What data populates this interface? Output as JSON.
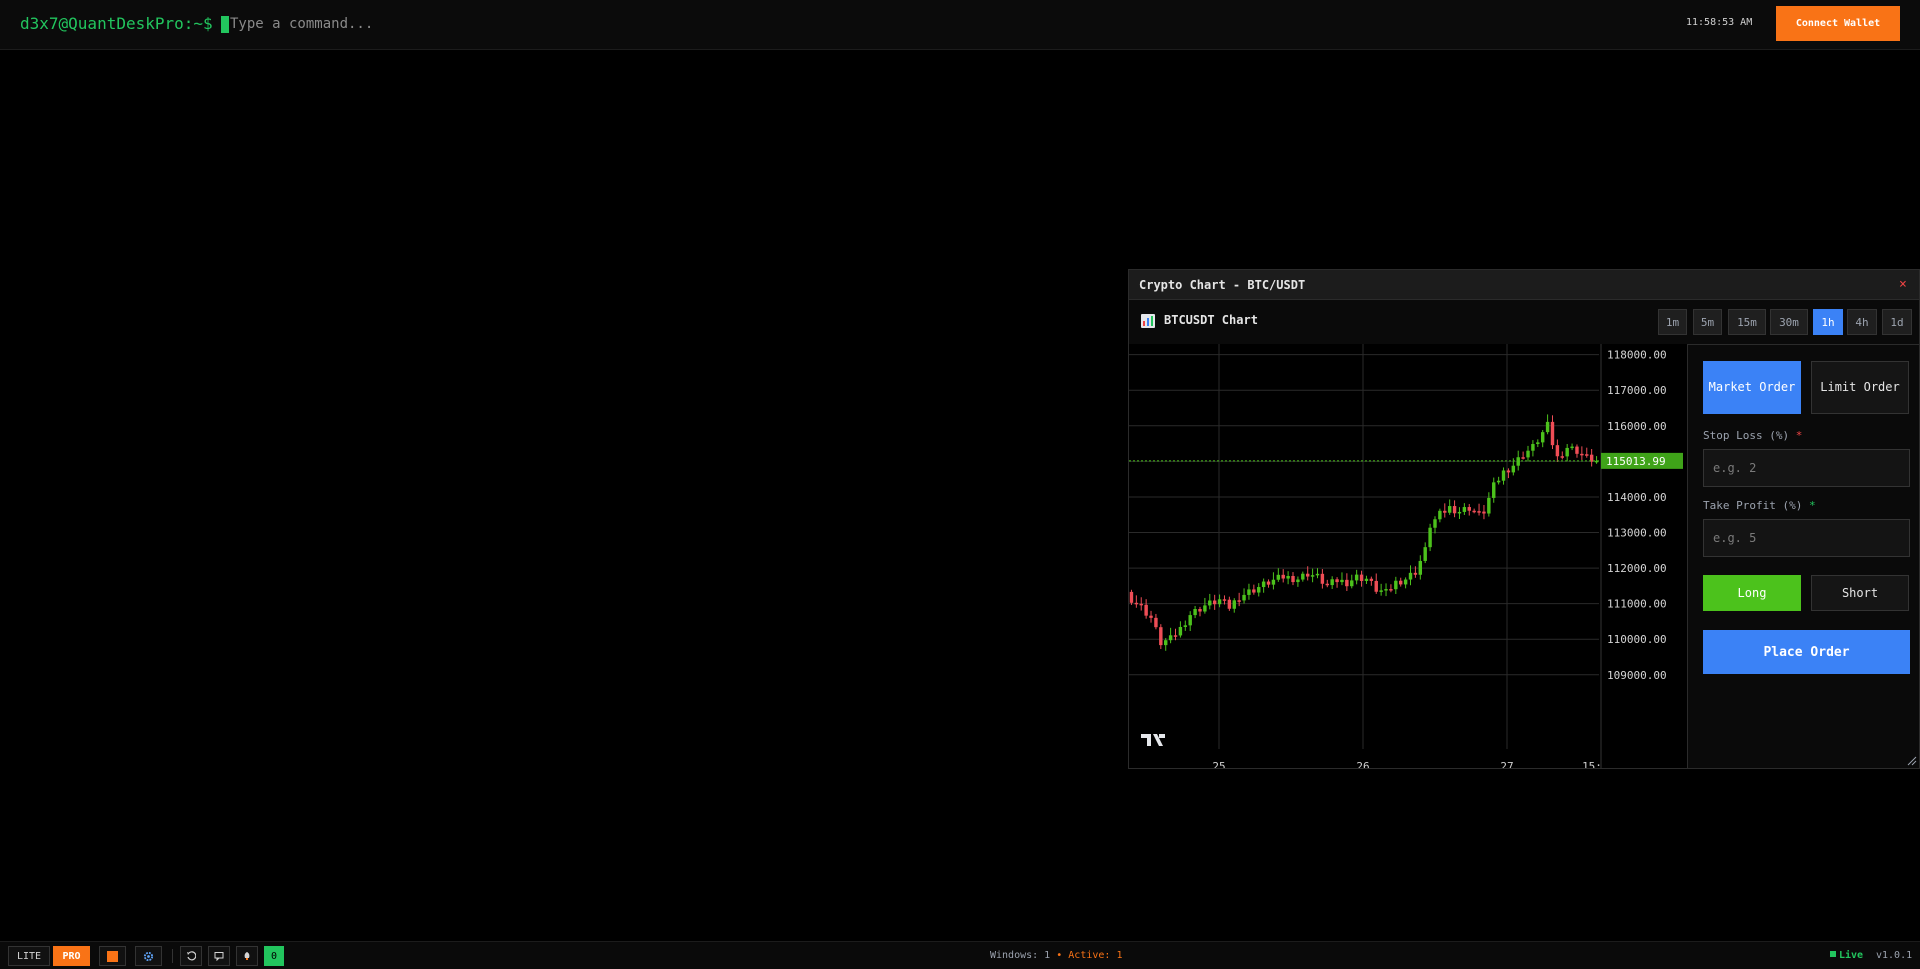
{
  "topbar": {
    "prompt": "d3x7@QuantDeskPro:~$",
    "command_placeholder": "Type a command...",
    "time": "11:58:53 AM",
    "connect_label": "Connect Wallet"
  },
  "window": {
    "title": "Crypto Chart - BTC/USDT",
    "close_label": "×",
    "chart_title": "BTCUSDT Chart",
    "timeframes": [
      "1m",
      "5m",
      "15m",
      "30m",
      "1h",
      "4h",
      "1d"
    ],
    "active_timeframe": "1h"
  },
  "chart_data": {
    "type": "candlestick",
    "symbol": "BTCUSDT",
    "y_ticks": [
      118000,
      117000,
      116000,
      115000,
      114000,
      113000,
      112000,
      111000,
      110000,
      109000
    ],
    "y_tick_labels": [
      "118000.00",
      "117000.00",
      "116000.00",
      "114000.00",
      "113000.00",
      "112000.00",
      "111000.00",
      "110000.00",
      "109000.00"
    ],
    "ylim": [
      108600,
      118300
    ],
    "x_tick_labels": [
      "25",
      "26",
      "27",
      "15:"
    ],
    "current_price": 115013.99,
    "current_price_label": "115013.99",
    "close_path": [
      [
        0,
        111250
      ],
      [
        3,
        110900
      ],
      [
        5,
        110600
      ],
      [
        7,
        109900
      ],
      [
        9,
        110000
      ],
      [
        11,
        110300
      ],
      [
        13,
        110700
      ],
      [
        16,
        110950
      ],
      [
        19,
        111100
      ],
      [
        21,
        110900
      ],
      [
        23,
        111200
      ],
      [
        26,
        111400
      ],
      [
        29,
        111600
      ],
      [
        32,
        111750
      ],
      [
        35,
        111700
      ],
      [
        37,
        111850
      ],
      [
        39,
        111750
      ],
      [
        41,
        111500
      ],
      [
        43,
        111650
      ],
      [
        45,
        111600
      ],
      [
        47,
        111750
      ],
      [
        49,
        111700
      ],
      [
        51,
        111400
      ],
      [
        53,
        111300
      ],
      [
        55,
        111600
      ],
      [
        57,
        111700
      ],
      [
        59,
        111900
      ],
      [
        61,
        112500
      ],
      [
        62,
        113200
      ],
      [
        64,
        113500
      ],
      [
        66,
        113700
      ],
      [
        68,
        113600
      ],
      [
        70,
        113700
      ],
      [
        72,
        113500
      ],
      [
        73,
        113600
      ],
      [
        75,
        114300
      ],
      [
        77,
        114700
      ],
      [
        79,
        114900
      ],
      [
        81,
        115200
      ],
      [
        83,
        115400
      ],
      [
        85,
        115800
      ],
      [
        86,
        116000
      ],
      [
        87,
        115500
      ],
      [
        88,
        115100
      ],
      [
        90,
        115400
      ],
      [
        92,
        115300
      ],
      [
        94,
        115100
      ],
      [
        96,
        115013.99
      ]
    ],
    "grid": true
  },
  "order_panel": {
    "market_label": "Market Order",
    "limit_label": "Limit Order",
    "stop_loss_label": "Stop Loss (%)",
    "stop_loss_placeholder": "e.g. 2",
    "take_profit_label": "Take Profit (%)",
    "take_profit_placeholder": "e.g. 5",
    "required_mark": "*",
    "long_label": "Long",
    "short_label": "Short",
    "place_label": "Place Order"
  },
  "bottombar": {
    "lite_label": "LITE",
    "pro_label": "PRO",
    "badge_count": "0",
    "windows_text": "Windows: 1",
    "active_text": "• Active: 1",
    "live_label": "Live",
    "version": "v1.0.1"
  },
  "colors": {
    "accent_orange": "#f97316",
    "accent_blue": "#3b82f6",
    "bull": "#4cc21c",
    "bear": "#ef4d56",
    "terminal_green": "#22c55e"
  }
}
